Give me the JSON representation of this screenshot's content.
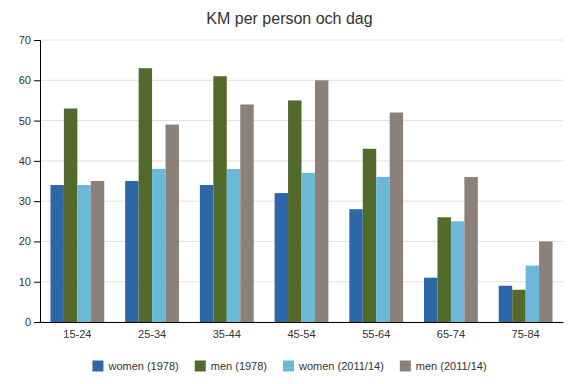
{
  "chart_data": {
    "type": "bar",
    "title": "KM per person och dag",
    "categories": [
      "15-24",
      "25-34",
      "35-44",
      "45-54",
      "55-64",
      "65-74",
      "75-84"
    ],
    "series": [
      {
        "name": "women (1978)",
        "color": "#2E67A8",
        "values": [
          34,
          35,
          34,
          32,
          28,
          11,
          9
        ]
      },
      {
        "name": "men (1978)",
        "color": "#526B2D",
        "values": [
          53,
          63,
          61,
          55,
          43,
          26,
          8
        ]
      },
      {
        "name": "women (2011/14)",
        "color": "#6BB8D8",
        "values": [
          34,
          38,
          38,
          37,
          36,
          25,
          14
        ]
      },
      {
        "name": "men (2011/14)",
        "color": "#8B8178",
        "values": [
          35,
          49,
          54,
          60,
          52,
          36,
          20
        ]
      }
    ],
    "ylim": [
      0,
      70
    ],
    "yticks": [
      0,
      10,
      20,
      30,
      40,
      50,
      60,
      70
    ],
    "grid": true,
    "legend": "bottom"
  }
}
